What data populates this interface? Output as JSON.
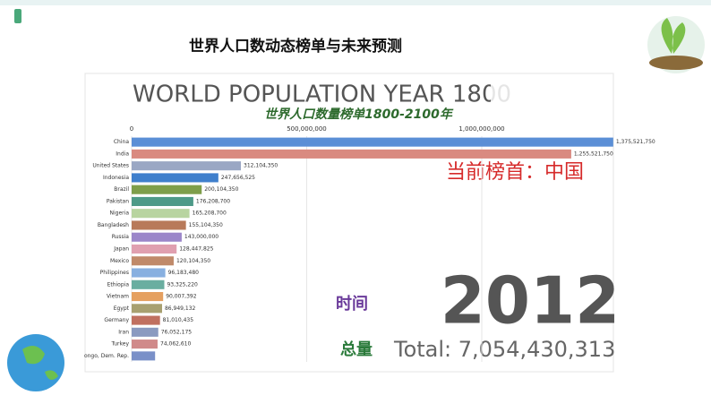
{
  "slide": {
    "title": "世界人口数动态榜单与未来预测"
  },
  "chart_data": {
    "type": "bar",
    "orientation": "horizontal",
    "title": "WORLD POPULATION YEAR 1800",
    "subtitle": "世界人口数量榜单1800-2100年",
    "annotations": [
      "当前榜首：中国",
      "时间",
      "2012",
      "总量",
      "Total: 7,054,430,313"
    ],
    "categories": [
      "China",
      "India",
      "United States",
      "Indonesia",
      "Brazil",
      "Pakistan",
      "Nigeria",
      "Bangladesh",
      "Russia",
      "Japan",
      "Mexico",
      "Philippines",
      "Ethiopia",
      "Vietnam",
      "Egypt",
      "Germany",
      "Iran",
      "Turkey",
      "ongo, Dem. Rep."
    ],
    "values": [
      1375521750,
      1255521750,
      312104350,
      247656525,
      200104350,
      176208700,
      165208700,
      155104350,
      143000000,
      128447825,
      120104350,
      96183480,
      93325220,
      90007392,
      86949132,
      81010435,
      76052175,
      74062610,
      67000000
    ],
    "value_labels": [
      "1,375,521,750",
      "1,255,521,750",
      "312,104,350",
      "247,656,525",
      "200,104,350",
      "176,208,700",
      "165,208,700",
      "155,104,350",
      "143,000,000",
      "128,447,825",
      "120,104,350",
      "96,183,480",
      "93,325,220",
      "90,007,392",
      "86,949,132",
      "81,010,435",
      "76,052,175",
      "74,062,610",
      null
    ],
    "colors": [
      "#5b8fd6",
      "#d98a80",
      "#9aa7c4",
      "#3f7fcc",
      "#7e9e4a",
      "#4e9a88",
      "#b8d4a0",
      "#b87a5a",
      "#9b86c9",
      "#e0a0b0",
      "#c08a6a",
      "#88b0e0",
      "#6aaea0",
      "#e5a060",
      "#a8a070",
      "#c07060",
      "#8a9ac0",
      "#d08a8a",
      "#7a90c8"
    ],
    "xlim": [
      0,
      1400000000
    ],
    "xticks": [
      0,
      {
        "value": 500000000,
        "label": "500,000,000"
      },
      {
        "value": 1000000000,
        "label": "1,000,000,000"
      }
    ],
    "grid": true
  }
}
